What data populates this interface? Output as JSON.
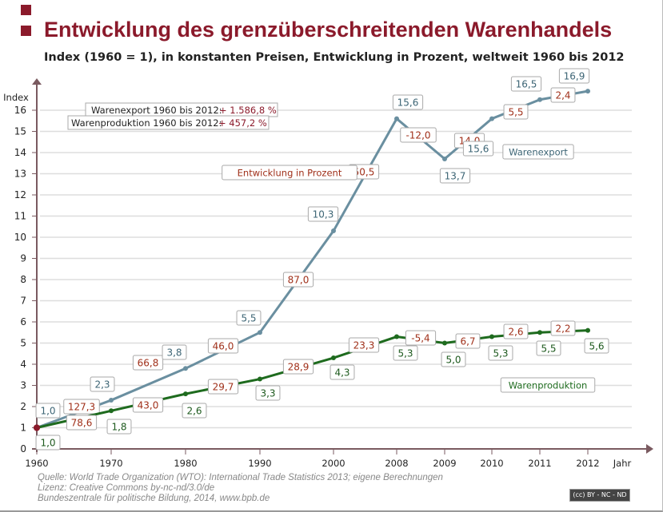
{
  "title": "Entwicklung des grenzüberschreitenden Warenhandels",
  "subtitle": "Index (1960 = 1), in konstanten Preisen, Entwicklung in Prozent, weltweit 1960 bis 2012",
  "notes": {
    "export_label": "Warenexport 1960 bis 2012:",
    "export_value": "+ 1.586,8 %",
    "production_label": "Warenproduktion 1960 bis 2012:",
    "production_value": "+ 457,2 %",
    "pct_legend": "Entwicklung in Prozent"
  },
  "source": [
    "Quelle: World Trade Organization (WTO): International Trade Statistics 2013; eigene Berechnungen",
    "Lizenz: Creative Commons by-nc-nd/3.0/de",
    "Bundeszentrale für politische Bildung, 2014, www.bpb.de"
  ],
  "license_badge": "(cc) BY - NC - ND",
  "colors": {
    "title": "#8b1a2b",
    "export": "#6a8fa0",
    "production": "#1e6b1e",
    "percent": "#a0301a"
  },
  "chart_data": {
    "type": "line",
    "xlabel": "Jahr",
    "ylabel": "Index",
    "categories": [
      "1960",
      "1970",
      "1980",
      "1990",
      "2000",
      "2008",
      "2009",
      "2010",
      "2011",
      "2012"
    ],
    "ylim": [
      0,
      16
    ],
    "yticks": [
      0,
      1,
      2,
      3,
      4,
      5,
      6,
      7,
      8,
      9,
      10,
      11,
      12,
      13,
      14,
      15,
      16
    ],
    "grid": true,
    "series": [
      {
        "name": "Warenexport",
        "values": [
          1.0,
          2.3,
          3.8,
          5.5,
          10.3,
          15.6,
          13.7,
          15.6,
          16.5,
          16.9
        ],
        "labels": [
          "1,0",
          "2,3",
          "3,8",
          "5,5",
          "10,3",
          "15,6",
          "13,7",
          "15,6",
          "16,5",
          "16,9"
        ],
        "percent_changes": [
          "127,3",
          "66,8",
          "46,0",
          "87,0",
          "50,5",
          "-12,0",
          "14,0",
          "5,5",
          "2,4"
        ]
      },
      {
        "name": "Warenproduktion",
        "values": [
          1.0,
          1.8,
          2.6,
          3.3,
          4.3,
          5.3,
          5.0,
          5.3,
          5.5,
          5.6
        ],
        "labels": [
          "1,0",
          "1,8",
          "2,6",
          "3,3",
          "4,3",
          "5,3",
          "5,0",
          "5,3",
          "5,5",
          "5,6"
        ],
        "percent_changes": [
          "78,6",
          "43,0",
          "29,7",
          "28,9",
          "23,3",
          "-5,4",
          "6,7",
          "2,6",
          "2,2"
        ]
      }
    ]
  }
}
